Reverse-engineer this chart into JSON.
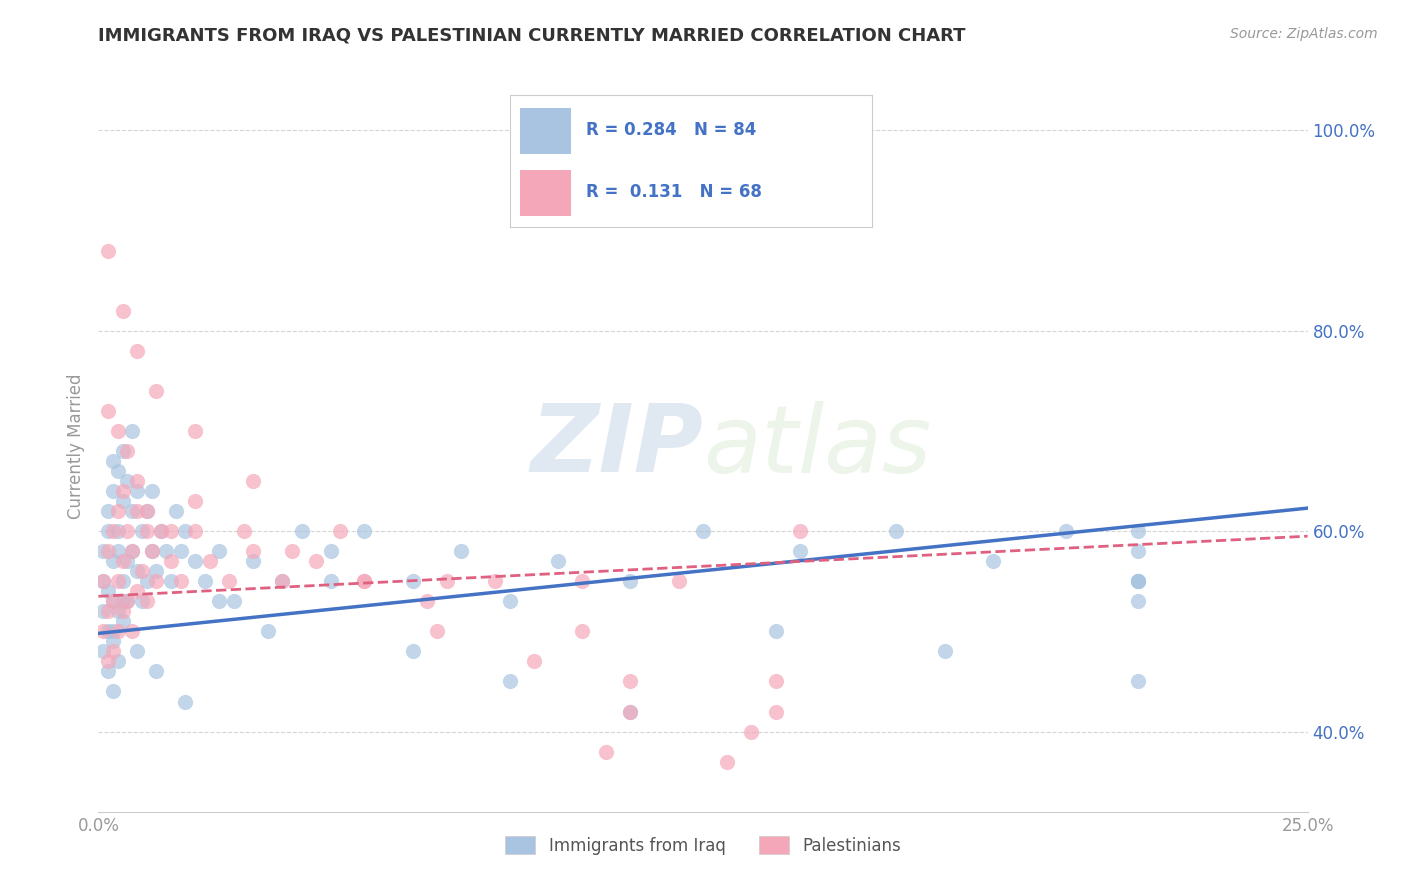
{
  "title": "IMMIGRANTS FROM IRAQ VS PALESTINIAN CURRENTLY MARRIED CORRELATION CHART",
  "source": "Source: ZipAtlas.com",
  "ylabel": "Currently Married",
  "legend_labels": [
    "Immigrants from Iraq",
    "Palestinians"
  ],
  "r_iraq": 0.284,
  "n_iraq": 84,
  "r_pal": 0.131,
  "n_pal": 68,
  "color_iraq": "#a8c4e0",
  "color_pal": "#f4a7b9",
  "color_iraq_line": "#4472c4",
  "color_pal_line": "#e06080",
  "xlim": [
    0.0,
    0.25
  ],
  "ylim": [
    0.32,
    1.05
  ],
  "x_ticks": [
    0.0,
    0.05,
    0.1,
    0.15,
    0.2,
    0.25
  ],
  "x_tick_labels": [
    "0.0%",
    "",
    "",
    "",
    "",
    "25.0%"
  ],
  "y_ticks": [
    0.4,
    0.6,
    0.8,
    1.0
  ],
  "y_tick_labels": [
    "40.0%",
    "60.0%",
    "80.0%",
    "100.0%"
  ],
  "watermark_zip": "ZIP",
  "watermark_atlas": "atlas",
  "background_color": "#ffffff",
  "grid_color": "#cccccc",
  "title_color": "#333333",
  "axis_color": "#999999",
  "tick_color": "#999999",
  "legend_r_color": "#4472c4",
  "legend_text_color": "#555555",
  "iraq_x": [
    0.001,
    0.001,
    0.001,
    0.001,
    0.002,
    0.002,
    0.002,
    0.002,
    0.002,
    0.003,
    0.003,
    0.003,
    0.003,
    0.003,
    0.003,
    0.004,
    0.004,
    0.004,
    0.004,
    0.004,
    0.005,
    0.005,
    0.005,
    0.005,
    0.006,
    0.006,
    0.006,
    0.007,
    0.007,
    0.007,
    0.008,
    0.008,
    0.009,
    0.009,
    0.01,
    0.01,
    0.011,
    0.011,
    0.012,
    0.013,
    0.014,
    0.015,
    0.016,
    0.017,
    0.018,
    0.02,
    0.022,
    0.025,
    0.028,
    0.032,
    0.038,
    0.042,
    0.048,
    0.055,
    0.065,
    0.075,
    0.085,
    0.095,
    0.11,
    0.125,
    0.145,
    0.165,
    0.185,
    0.2,
    0.215,
    0.003,
    0.005,
    0.008,
    0.012,
    0.018,
    0.025,
    0.035,
    0.048,
    0.065,
    0.085,
    0.11,
    0.14,
    0.175,
    0.215,
    0.215,
    0.215,
    0.215,
    0.215,
    0.215
  ],
  "iraq_y": [
    0.52,
    0.55,
    0.48,
    0.58,
    0.6,
    0.54,
    0.5,
    0.62,
    0.46,
    0.64,
    0.53,
    0.57,
    0.49,
    0.67,
    0.44,
    0.66,
    0.52,
    0.58,
    0.47,
    0.6,
    0.68,
    0.55,
    0.51,
    0.63,
    0.65,
    0.57,
    0.53,
    0.62,
    0.58,
    0.7,
    0.64,
    0.56,
    0.6,
    0.53,
    0.62,
    0.55,
    0.64,
    0.58,
    0.56,
    0.6,
    0.58,
    0.55,
    0.62,
    0.58,
    0.6,
    0.57,
    0.55,
    0.58,
    0.53,
    0.57,
    0.55,
    0.6,
    0.58,
    0.6,
    0.55,
    0.58,
    0.53,
    0.57,
    0.55,
    0.6,
    0.58,
    0.6,
    0.57,
    0.6,
    0.55,
    0.5,
    0.53,
    0.48,
    0.46,
    0.43,
    0.53,
    0.5,
    0.55,
    0.48,
    0.45,
    0.42,
    0.5,
    0.48,
    0.6,
    0.55,
    0.58,
    0.53,
    0.45,
    0.55
  ],
  "pal_x": [
    0.001,
    0.001,
    0.002,
    0.002,
    0.002,
    0.003,
    0.003,
    0.003,
    0.004,
    0.004,
    0.004,
    0.005,
    0.005,
    0.005,
    0.006,
    0.006,
    0.007,
    0.007,
    0.008,
    0.008,
    0.009,
    0.01,
    0.01,
    0.011,
    0.012,
    0.013,
    0.015,
    0.017,
    0.02,
    0.023,
    0.027,
    0.032,
    0.038,
    0.045,
    0.055,
    0.068,
    0.082,
    0.1,
    0.12,
    0.145,
    0.002,
    0.004,
    0.006,
    0.008,
    0.01,
    0.015,
    0.02,
    0.03,
    0.04,
    0.055,
    0.07,
    0.09,
    0.11,
    0.14,
    0.002,
    0.005,
    0.008,
    0.012,
    0.02,
    0.032,
    0.05,
    0.072,
    0.1,
    0.14,
    0.105,
    0.13,
    0.11,
    0.135
  ],
  "pal_y": [
    0.55,
    0.5,
    0.58,
    0.52,
    0.47,
    0.6,
    0.53,
    0.48,
    0.62,
    0.55,
    0.5,
    0.64,
    0.57,
    0.52,
    0.6,
    0.53,
    0.58,
    0.5,
    0.62,
    0.54,
    0.56,
    0.6,
    0.53,
    0.58,
    0.55,
    0.6,
    0.57,
    0.55,
    0.6,
    0.57,
    0.55,
    0.58,
    0.55,
    0.57,
    0.55,
    0.53,
    0.55,
    0.55,
    0.55,
    0.6,
    0.72,
    0.7,
    0.68,
    0.65,
    0.62,
    0.6,
    0.63,
    0.6,
    0.58,
    0.55,
    0.5,
    0.47,
    0.45,
    0.42,
    0.88,
    0.82,
    0.78,
    0.74,
    0.7,
    0.65,
    0.6,
    0.55,
    0.5,
    0.45,
    0.38,
    0.37,
    0.42,
    0.4
  ]
}
